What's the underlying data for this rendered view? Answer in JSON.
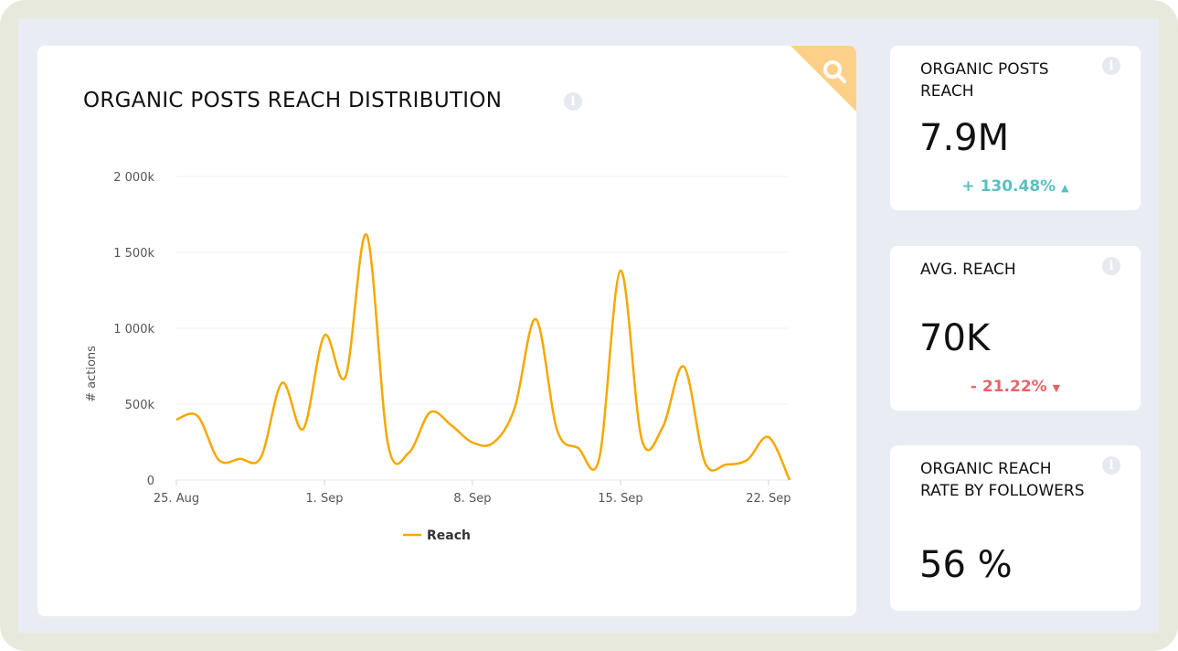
{
  "main": {
    "title": "ORGANIC POSTS REACH DISTRIBUTION",
    "info_icon": "info-icon",
    "corner_icon": "search-icon",
    "corner_color": "#fdd08a"
  },
  "chart_data": {
    "type": "line",
    "ylabel": "# actions",
    "ylim": [
      0,
      2000
    ],
    "y_ticks": [
      "0",
      "500k",
      "1 000k",
      "1 500k",
      "2 000k"
    ],
    "x_ticks": [
      "25. Aug",
      "1. Sep",
      "8. Sep",
      "15. Sep",
      "22. Sep"
    ],
    "grid": true,
    "legend": "bottom-center",
    "series": [
      {
        "name": "Reach",
        "color": "#f5a800",
        "x": [
          "25. Aug",
          "26. Aug",
          "27. Aug",
          "28. Aug",
          "29. Aug",
          "30. Aug",
          "31. Aug",
          "1. Sep",
          "2. Sep",
          "3. Sep",
          "4. Sep",
          "5. Sep",
          "6. Sep",
          "7. Sep",
          "8. Sep",
          "9. Sep",
          "10. Sep",
          "11. Sep",
          "12. Sep",
          "13. Sep",
          "14. Sep",
          "15. Sep",
          "16. Sep",
          "17. Sep",
          "18. Sep",
          "19. Sep",
          "20. Sep",
          "21. Sep",
          "22. Sep",
          "23. Sep"
        ],
        "values": [
          398,
          422,
          133,
          139,
          150,
          640,
          337,
          952,
          681,
          1615,
          241,
          181,
          446,
          361,
          247,
          247,
          476,
          1060,
          331,
          211,
          145,
          1380,
          271,
          349,
          747,
          114,
          102,
          133,
          283,
          0
        ]
      }
    ]
  },
  "cards": [
    {
      "label": "ORGANIC POSTS REACH",
      "value": "7.9M",
      "change": "+ 130.48%",
      "direction": "up",
      "color": "#5bbfbe"
    },
    {
      "label": "AVG. REACH",
      "value": "70K",
      "change": "- 21.22%",
      "direction": "down",
      "color": "#e7646b"
    },
    {
      "label": "ORGANIC REACH RATE BY FOLLOWERS",
      "value": "56 %"
    }
  ]
}
